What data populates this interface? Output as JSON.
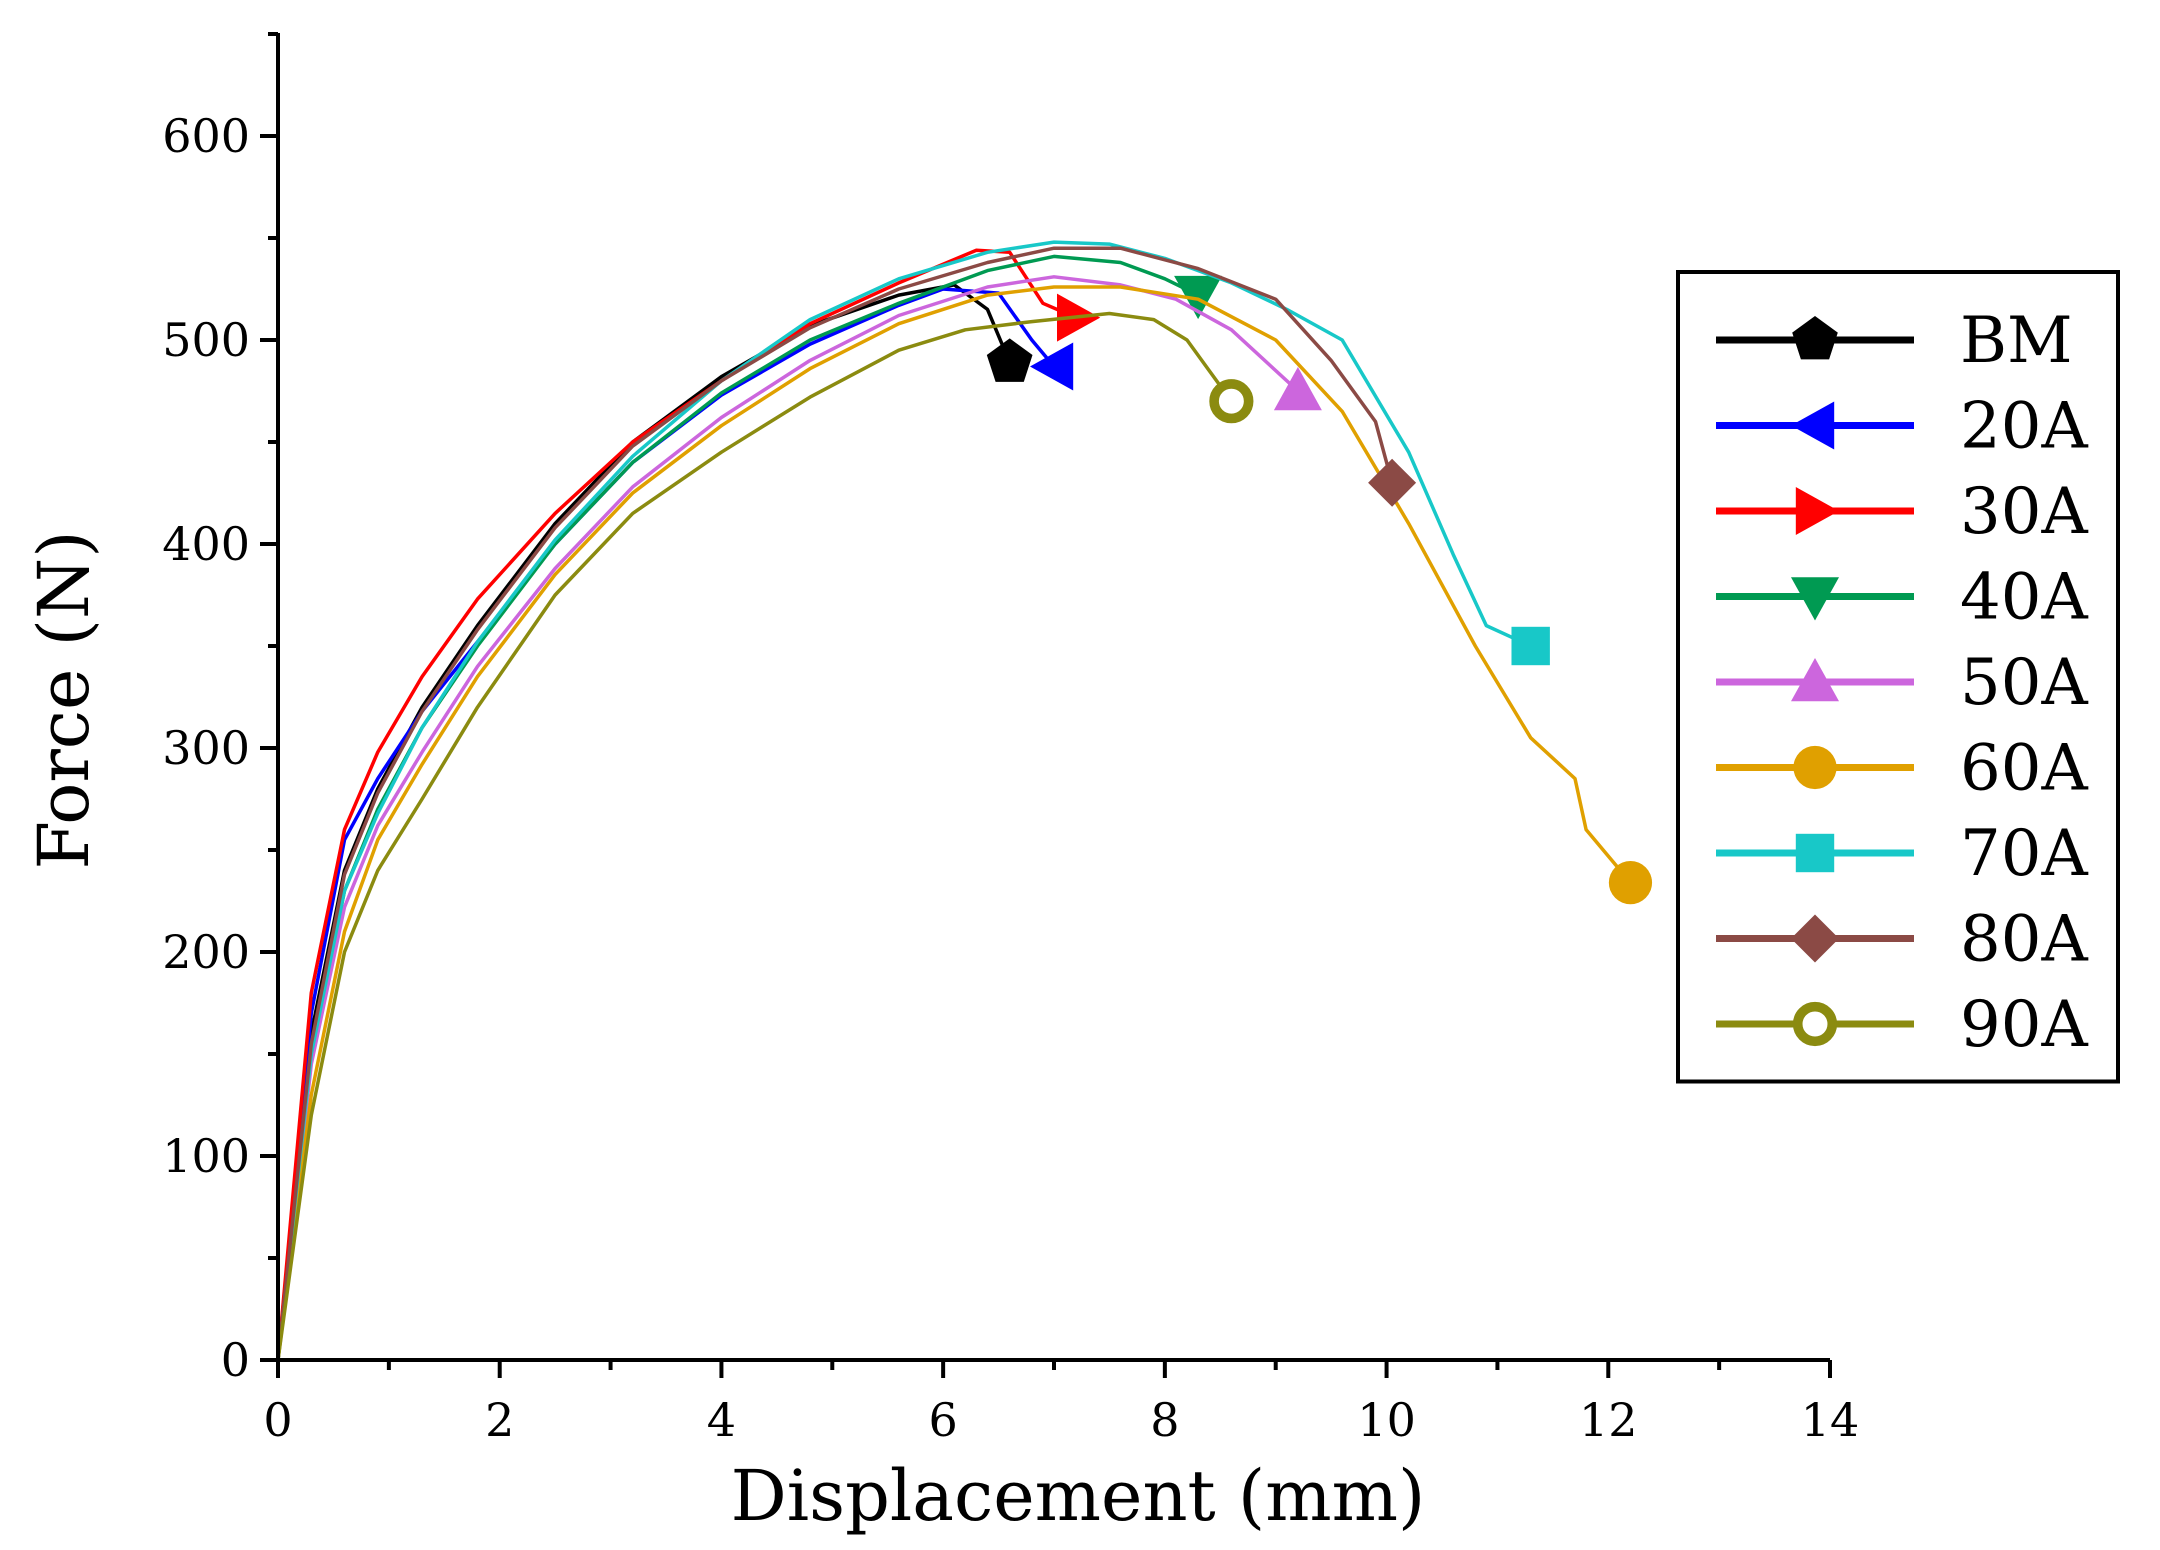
{
  "chart_data": {
    "type": "line",
    "title": "",
    "xlabel": "Displacement (mm)",
    "ylabel": "Force (N)",
    "xlim": [
      0,
      14
    ],
    "ylim": [
      0,
      650
    ],
    "xticks": [
      0,
      2,
      4,
      6,
      8,
      10,
      12,
      14
    ],
    "yticks": [
      0,
      100,
      200,
      300,
      400,
      500,
      600
    ],
    "grid": false,
    "legend_position": "right",
    "series": [
      {
        "name": "BM",
        "color": "#000000",
        "marker": "pentagon",
        "x": [
          0,
          0.3,
          0.6,
          0.9,
          1.3,
          1.8,
          2.5,
          3.2,
          4.0,
          4.8,
          5.6,
          6.1,
          6.4,
          6.6
        ],
        "y": [
          0,
          160,
          240,
          280,
          320,
          360,
          410,
          450,
          482,
          507,
          522,
          527,
          515,
          489
        ]
      },
      {
        "name": "20A",
        "color": "#0000ff",
        "marker": "triangle-left",
        "x": [
          0,
          0.3,
          0.6,
          0.9,
          1.3,
          1.8,
          2.5,
          3.2,
          4.0,
          4.8,
          5.6,
          6.0,
          6.5,
          6.8,
          7.0
        ],
        "y": [
          0,
          170,
          255,
          285,
          318,
          352,
          400,
          440,
          473,
          498,
          517,
          525,
          523,
          500,
          487
        ]
      },
      {
        "name": "30A",
        "color": "#ff0000",
        "marker": "triangle-right",
        "x": [
          0,
          0.3,
          0.6,
          0.9,
          1.3,
          1.8,
          2.5,
          3.2,
          4.0,
          4.8,
          5.6,
          6.3,
          6.6,
          6.9,
          7.2
        ],
        "y": [
          0,
          180,
          260,
          298,
          335,
          373,
          415,
          450,
          480,
          508,
          528,
          544,
          543,
          518,
          511
        ]
      },
      {
        "name": "40A",
        "color": "#009a52",
        "marker": "triangle-down",
        "x": [
          0,
          0.3,
          0.6,
          0.9,
          1.3,
          1.8,
          2.5,
          3.2,
          4.0,
          4.8,
          5.6,
          6.4,
          7.0,
          7.6,
          8.0,
          8.3
        ],
        "y": [
          0,
          150,
          230,
          270,
          310,
          350,
          400,
          440,
          474,
          500,
          518,
          534,
          541,
          538,
          530,
          522
        ]
      },
      {
        "name": "50A",
        "color": "#cc66dd",
        "marker": "triangle-up",
        "x": [
          0,
          0.3,
          0.6,
          0.9,
          1.3,
          1.8,
          2.5,
          3.2,
          4.0,
          4.8,
          5.6,
          6.4,
          7.0,
          7.6,
          8.1,
          8.6,
          9.2
        ],
        "y": [
          0,
          145,
          222,
          262,
          298,
          340,
          388,
          428,
          462,
          490,
          512,
          526,
          531,
          527,
          520,
          505,
          475
        ]
      },
      {
        "name": "60A",
        "color": "#e0a000",
        "marker": "circle",
        "x": [
          0,
          0.3,
          0.6,
          0.9,
          1.3,
          1.8,
          2.5,
          3.2,
          4.0,
          4.8,
          5.6,
          6.4,
          7.0,
          7.6,
          8.3,
          9.0,
          9.6,
          10.2,
          10.8,
          11.3,
          11.7,
          11.8,
          12.2
        ],
        "y": [
          0,
          130,
          210,
          255,
          292,
          335,
          385,
          425,
          458,
          486,
          508,
          522,
          526,
          526,
          520,
          500,
          465,
          410,
          350,
          305,
          285,
          260,
          234
        ]
      },
      {
        "name": "70A",
        "color": "#18c8c8",
        "marker": "square",
        "x": [
          0,
          0.3,
          0.6,
          0.9,
          1.3,
          1.8,
          2.5,
          3.2,
          4.0,
          4.8,
          5.6,
          6.4,
          7.0,
          7.5,
          8.0,
          8.6,
          9.1,
          9.6,
          10.2,
          10.6,
          10.9,
          11.3
        ],
        "y": [
          0,
          150,
          230,
          268,
          310,
          352,
          402,
          443,
          480,
          510,
          530,
          543,
          548,
          547,
          540,
          528,
          515,
          500,
          445,
          395,
          360,
          350
        ]
      },
      {
        "name": "80A",
        "color": "#8b4a45",
        "marker": "diamond",
        "x": [
          0,
          0.3,
          0.6,
          0.9,
          1.3,
          1.8,
          2.5,
          3.2,
          4.0,
          4.8,
          5.6,
          6.4,
          7.0,
          7.6,
          8.3,
          9.0,
          9.5,
          9.9,
          10.05
        ],
        "y": [
          0,
          155,
          238,
          278,
          318,
          358,
          408,
          448,
          480,
          506,
          525,
          538,
          545,
          545,
          535,
          520,
          490,
          460,
          430
        ]
      },
      {
        "name": "90A",
        "color": "#8b8b10",
        "marker": "circle-open",
        "x": [
          0,
          0.3,
          0.6,
          0.9,
          1.3,
          1.8,
          2.5,
          3.2,
          4.0,
          4.8,
          5.6,
          6.2,
          6.8,
          7.5,
          7.9,
          8.2,
          8.4,
          8.6
        ],
        "y": [
          0,
          120,
          200,
          240,
          275,
          320,
          375,
          415,
          445,
          472,
          495,
          505,
          509,
          513,
          510,
          500,
          485,
          470
        ]
      }
    ]
  }
}
